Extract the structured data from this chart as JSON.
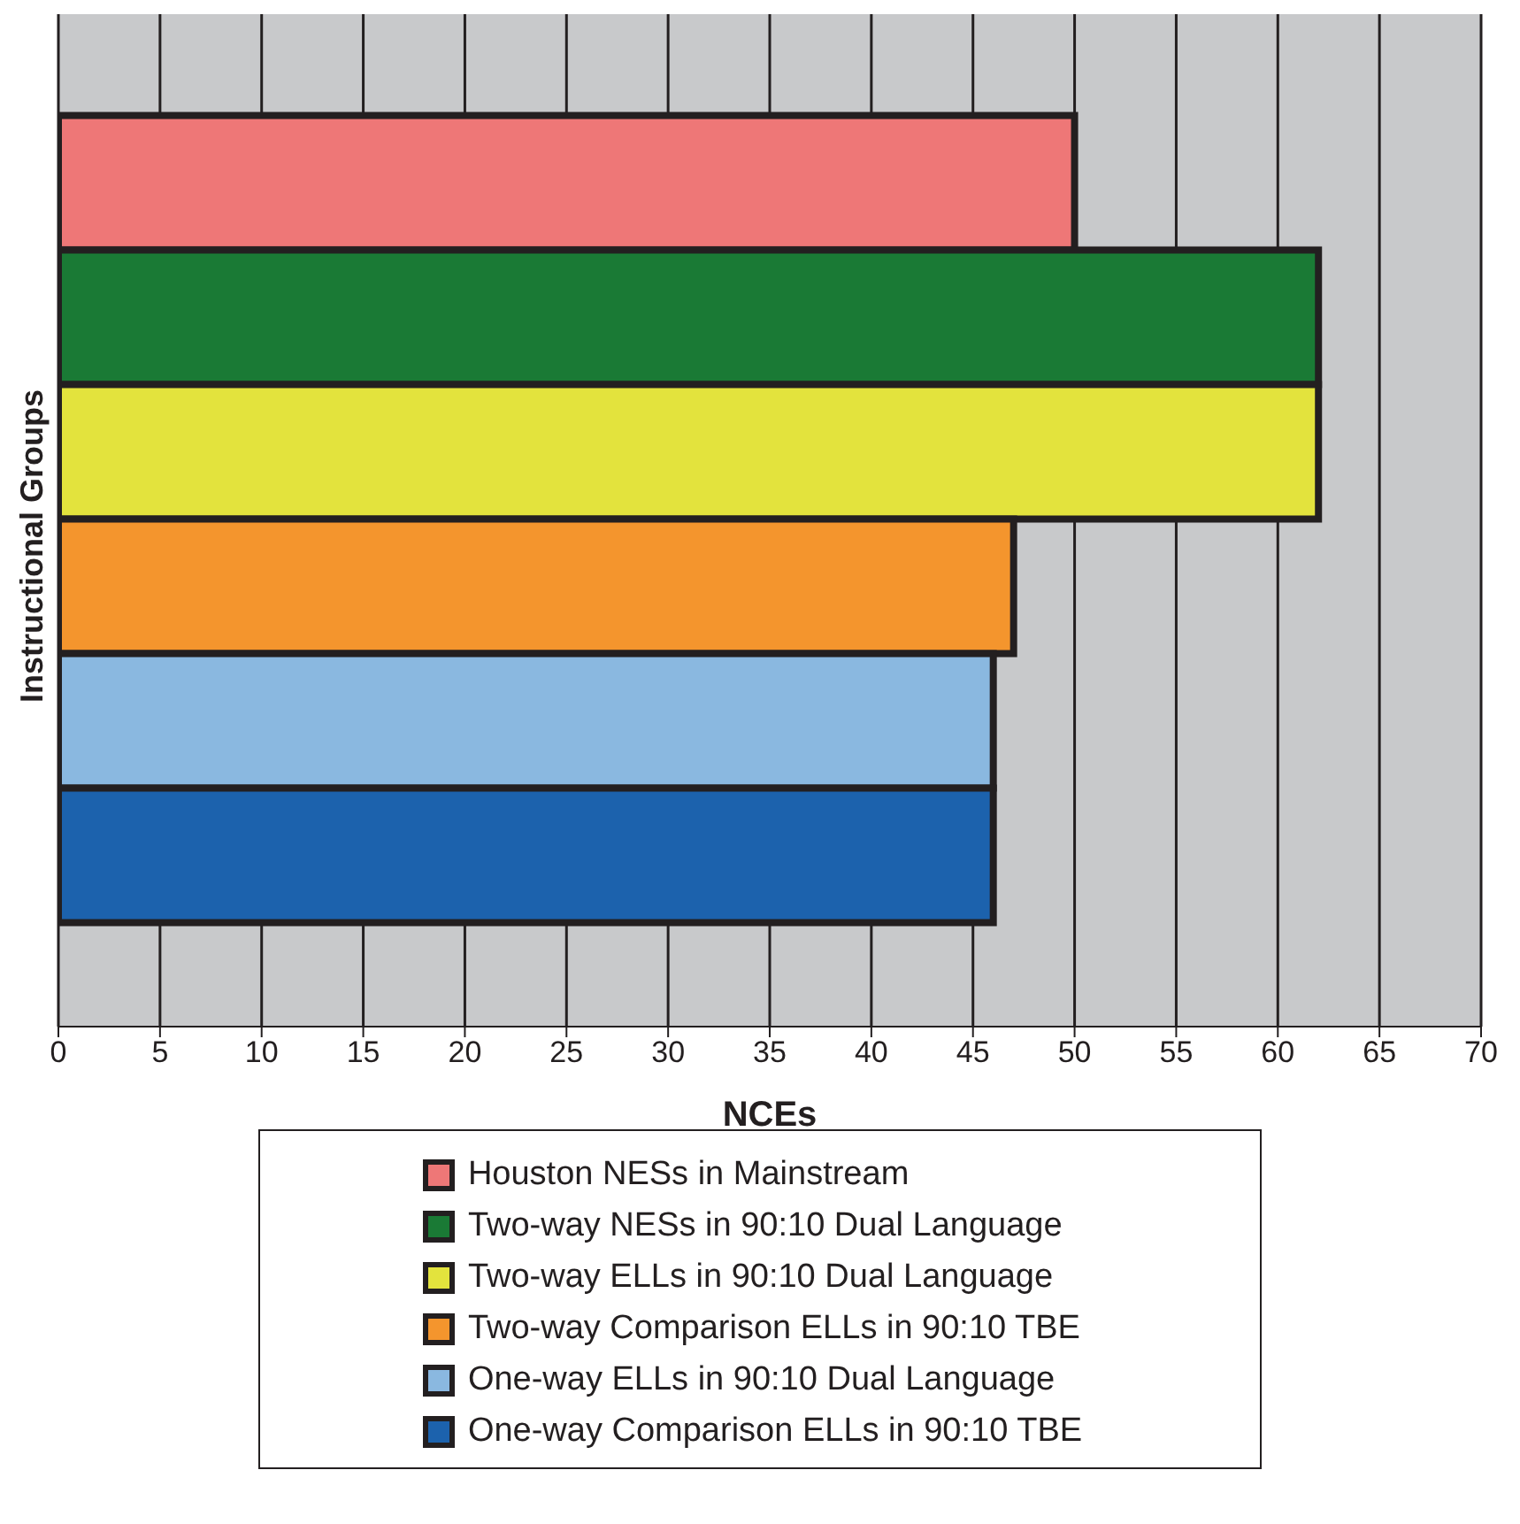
{
  "chart_data": {
    "type": "bar",
    "orientation": "horizontal",
    "xlabel": "NCEs",
    "ylabel": "Instructional Groups",
    "categories": [
      null
    ],
    "series": [
      {
        "name": "Houston NESs in Mainstream",
        "color": "#ee7777",
        "values": [
          50
        ]
      },
      {
        "name": "Two-way NESs in 90:10 Dual Language",
        "color": "#1a7a35",
        "values": [
          62
        ]
      },
      {
        "name": "Two-way ELLs in 90:10 Dual Language",
        "color": "#e3e33d",
        "values": [
          62
        ]
      },
      {
        "name": "Two-way Comparison ELLs in 90:10 TBE",
        "color": "#f4952d",
        "values": [
          47
        ]
      },
      {
        "name": "One-way ELLs in 90:10 Dual Language",
        "color": "#8ab8e0",
        "values": [
          46
        ]
      },
      {
        "name": "One-way Comparison ELLs in 90:10 TBE",
        "color": "#1c62ad",
        "values": [
          46
        ]
      }
    ],
    "xlim": [
      0,
      70
    ],
    "xticks": [
      0,
      5,
      10,
      15,
      20,
      25,
      30,
      35,
      40,
      45,
      50,
      55,
      60,
      65,
      70
    ],
    "grid": "x",
    "legend": "bottom"
  }
}
